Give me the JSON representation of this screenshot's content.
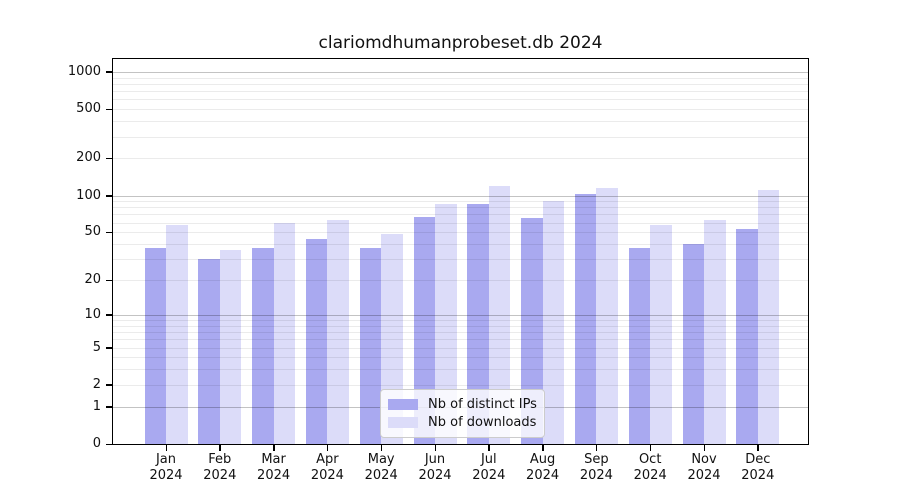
{
  "title": "clariomdhumanprobeset.db 2024",
  "chart_data": {
    "type": "bar",
    "title": "clariomdhumanprobeset.db 2024",
    "categories": [
      "Jan",
      "Feb",
      "Mar",
      "Apr",
      "May",
      "Jun",
      "Jul",
      "Aug",
      "Sep",
      "Oct",
      "Nov",
      "Dec"
    ],
    "x_year": "2024",
    "series": [
      {
        "name": "Nb of distinct IPs",
        "color": "#a9a9f0",
        "values": [
          37,
          30,
          37,
          44,
          37,
          67,
          85,
          65,
          102,
          37,
          40,
          53
        ]
      },
      {
        "name": "Nb of downloads",
        "color": "#dcdcf9",
        "values": [
          57,
          36,
          60,
          63,
          48,
          86,
          120,
          90,
          115,
          57,
          63,
          110
        ]
      }
    ],
    "yscale": "log1p",
    "yticks": [
      0,
      1,
      2,
      5,
      10,
      20,
      50,
      100,
      200,
      500,
      1000
    ],
    "ylim": [
      0,
      1270
    ],
    "grid": "horizontal",
    "legend": {
      "position": "inside-bottom-center",
      "entries": [
        "Nb of distinct IPs",
        "Nb of downloads"
      ]
    }
  },
  "colors": {
    "bar_ips": "#a9a9f0",
    "bar_downloads": "#dcdcf9",
    "grid_major": "#c4c4c4",
    "grid_minor": "#ececec",
    "axis": "#000000",
    "text": "#111111",
    "legend_border": "#cccccc"
  }
}
